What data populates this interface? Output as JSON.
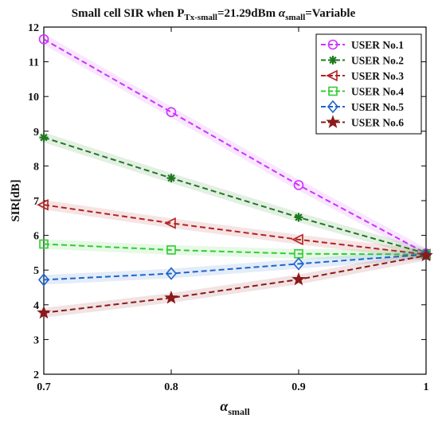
{
  "chart_data": {
    "type": "line",
    "title_parts": {
      "prefix": "Small cell  SIR  when P",
      "p_sub": "Tx-small",
      "mid": "=21.29dBm ",
      "alpha": "α",
      "alpha_sub": "small",
      "suffix": "=Variable"
    },
    "xlabel": {
      "symbol": "α",
      "sub": "small"
    },
    "ylabel": "SIR[dB]",
    "x": [
      0.7,
      0.8,
      0.9,
      1.0
    ],
    "xlim": [
      0.7,
      1.0
    ],
    "ylim": [
      2,
      12
    ],
    "xticks": [
      {
        "value": 0.7,
        "label": "0.7"
      },
      {
        "value": 0.8,
        "label": "0.8"
      },
      {
        "value": 0.9,
        "label": "0.9"
      },
      {
        "value": 1.0,
        "label": "1"
      }
    ],
    "yticks": [
      {
        "value": 2,
        "label": "2"
      },
      {
        "value": 3,
        "label": "3"
      },
      {
        "value": 4,
        "label": "4"
      },
      {
        "value": 5,
        "label": "5"
      },
      {
        "value": 6,
        "label": "6"
      },
      {
        "value": 7,
        "label": "7"
      },
      {
        "value": 8,
        "label": "8"
      },
      {
        "value": 9,
        "label": "9"
      },
      {
        "value": 10,
        "label": "10"
      },
      {
        "value": 11,
        "label": "11"
      },
      {
        "value": 12,
        "label": "12"
      }
    ],
    "grid": false,
    "legend_position": "top-right",
    "series": [
      {
        "name": "USER No.1",
        "values": [
          11.65,
          9.55,
          7.45,
          5.48
        ],
        "color": "#cc33ff",
        "marker": "circle"
      },
      {
        "name": "USER No.2",
        "values": [
          8.82,
          7.65,
          6.52,
          5.48
        ],
        "color": "#1f7a1f",
        "marker": "asterisk"
      },
      {
        "name": "USER No.3",
        "values": [
          6.88,
          6.35,
          5.88,
          5.45
        ],
        "color": "#b22222",
        "marker": "triangle-left"
      },
      {
        "name": "USER No.4",
        "values": [
          5.75,
          5.58,
          5.47,
          5.45
        ],
        "color": "#33cc33",
        "marker": "square"
      },
      {
        "name": "USER No.5",
        "values": [
          4.72,
          4.9,
          5.18,
          5.45
        ],
        "color": "#1f66cc",
        "marker": "diamond"
      },
      {
        "name": "USER No.6",
        "values": [
          3.77,
          4.2,
          4.73,
          5.42
        ],
        "color": "#8b1a1a",
        "marker": "star"
      }
    ]
  }
}
